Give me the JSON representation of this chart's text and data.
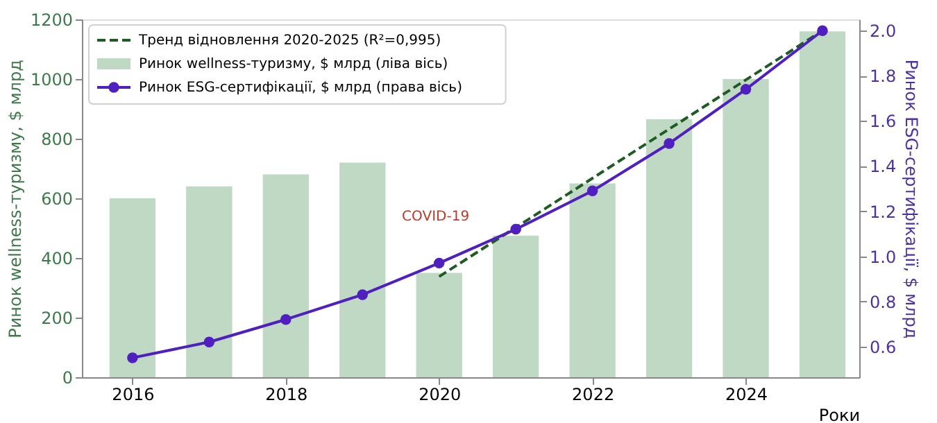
{
  "chart_data": {
    "type": "bar",
    "x": [
      2016,
      2017,
      2018,
      2019,
      2020,
      2021,
      2022,
      2023,
      2024,
      2025
    ],
    "series": [
      {
        "name": "Тренд відновлення 2020-2025 (R²=0,995)",
        "type": "line",
        "axis": "y2",
        "line_style": "dashed",
        "marker": "none",
        "color": "#1f5c24",
        "x": [
          2020,
          2025
        ],
        "values": [
          0.91,
          2.0
        ]
      },
      {
        "name": "Ринок wellness-туризму, $ млрд (ліва вісь)",
        "color": "#c0d9c5",
        "values": [
          600,
          640,
          680,
          720,
          350,
          475,
          650,
          865,
          1000,
          1160
        ]
      },
      {
        "name": "Ринок ESG-сертифікації, $ млрд (права вісь)",
        "type": "line",
        "axis": "y2",
        "line_style": "solid",
        "marker": "circle",
        "color": "#4f1fbf",
        "values": [
          0.55,
          0.62,
          0.72,
          0.83,
          0.97,
          1.12,
          1.29,
          1.5,
          1.74,
          2.0
        ]
      }
    ],
    "xlabel": "Роки",
    "ylabel": "Ринок wellness-туризму, $ млрд",
    "y2label": "Ринок ESG-сертифікації, $ млрд",
    "xlim": [
      2015.34,
      2025.48
    ],
    "xticks": [
      2016,
      2018,
      2020,
      2022,
      2024
    ],
    "ylim": [
      0,
      1200
    ],
    "yticks": [
      0,
      200,
      400,
      600,
      800,
      1000,
      1200
    ],
    "y2lim": [
      0.464,
      2.05
    ],
    "y2ticks": [
      0.6,
      0.8,
      {
        "value": 1,
        "label": "1.0"
      },
      1.2,
      1.4,
      1.6,
      1.8,
      {
        "value": 2,
        "label": "2.0"
      }
    ],
    "annotations": [
      "COVID-19"
    ],
    "legend": "top left",
    "grid": false
  }
}
